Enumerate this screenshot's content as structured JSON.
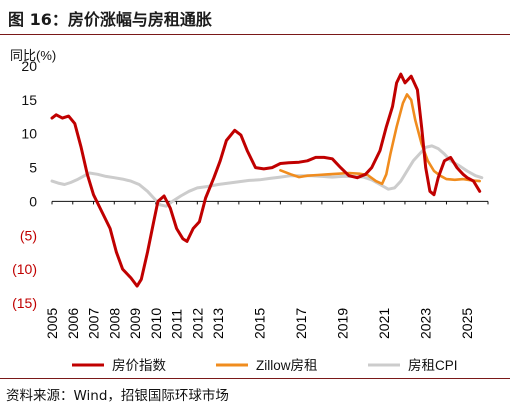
{
  "header": {
    "title": "图 16：房价涨幅与房租通胀"
  },
  "footer": {
    "source": "资料来源：Wind，招银国际环球市场"
  },
  "chart_data": {
    "type": "line",
    "ylabel": "同比(%)",
    "ylim": [
      -15,
      20
    ],
    "y_ticks": [
      "20",
      "15",
      "10",
      "5",
      "0",
      "(5)",
      "(10)",
      "(15)"
    ],
    "negative_label_color": "#c00000",
    "x_range": [
      2005,
      2026
    ],
    "x_ticks": [
      "2005",
      "2006",
      "2007",
      "2008",
      "2009",
      "2010",
      "2011",
      "2012",
      "2013",
      "2015",
      "2017",
      "2019",
      "2021",
      "2023",
      "2025"
    ],
    "legend_position": "bottom",
    "series": [
      {
        "name": "房价指数",
        "color": "#c00000",
        "points": [
          [
            2005.0,
            12.3
          ],
          [
            2005.2,
            12.8
          ],
          [
            2005.5,
            12.3
          ],
          [
            2005.8,
            12.6
          ],
          [
            2006.1,
            11.5
          ],
          [
            2006.4,
            8.0
          ],
          [
            2006.7,
            4.0
          ],
          [
            2007.0,
            1.0
          ],
          [
            2007.4,
            -1.5
          ],
          [
            2007.8,
            -4.0
          ],
          [
            2008.1,
            -7.5
          ],
          [
            2008.4,
            -10.0
          ],
          [
            2008.8,
            -11.3
          ],
          [
            2009.1,
            -12.5
          ],
          [
            2009.3,
            -11.5
          ],
          [
            2009.6,
            -7.5
          ],
          [
            2009.9,
            -3.0
          ],
          [
            2010.1,
            0.0
          ],
          [
            2010.4,
            0.8
          ],
          [
            2010.7,
            -1.0
          ],
          [
            2011.0,
            -4.0
          ],
          [
            2011.3,
            -5.5
          ],
          [
            2011.5,
            -5.9
          ],
          [
            2011.8,
            -4.0
          ],
          [
            2012.1,
            -3.0
          ],
          [
            2012.4,
            0.5
          ],
          [
            2012.8,
            3.5
          ],
          [
            2013.1,
            6.0
          ],
          [
            2013.4,
            9.0
          ],
          [
            2013.8,
            10.5
          ],
          [
            2014.1,
            9.8
          ],
          [
            2014.4,
            7.5
          ],
          [
            2014.8,
            5.0
          ],
          [
            2015.2,
            4.8
          ],
          [
            2015.6,
            5.0
          ],
          [
            2016.0,
            5.6
          ],
          [
            2016.4,
            5.7
          ],
          [
            2016.9,
            5.8
          ],
          [
            2017.3,
            6.0
          ],
          [
            2017.7,
            6.5
          ],
          [
            2018.1,
            6.5
          ],
          [
            2018.5,
            6.3
          ],
          [
            2018.9,
            5.0
          ],
          [
            2019.3,
            3.8
          ],
          [
            2019.7,
            3.5
          ],
          [
            2020.1,
            4.0
          ],
          [
            2020.4,
            5.0
          ],
          [
            2020.8,
            7.5
          ],
          [
            2021.1,
            11.0
          ],
          [
            2021.4,
            14.0
          ],
          [
            2021.6,
            17.5
          ],
          [
            2021.8,
            18.8
          ],
          [
            2022.0,
            17.5
          ],
          [
            2022.3,
            18.5
          ],
          [
            2022.6,
            16.5
          ],
          [
            2022.8,
            11.0
          ],
          [
            2023.0,
            5.0
          ],
          [
            2023.2,
            1.5
          ],
          [
            2023.4,
            1.0
          ],
          [
            2023.6,
            3.5
          ],
          [
            2023.9,
            6.0
          ],
          [
            2024.2,
            6.5
          ],
          [
            2024.5,
            5.0
          ],
          [
            2024.8,
            4.0
          ],
          [
            2025.0,
            3.5
          ],
          [
            2025.3,
            3.0
          ],
          [
            2025.6,
            1.5
          ]
        ]
      },
      {
        "name": "Zillow房租",
        "color": "#f08c1e",
        "points": [
          [
            2016.0,
            4.6
          ],
          [
            2016.5,
            4.0
          ],
          [
            2016.9,
            3.6
          ],
          [
            2017.3,
            3.8
          ],
          [
            2017.8,
            3.9
          ],
          [
            2018.3,
            4.0
          ],
          [
            2018.8,
            4.1
          ],
          [
            2019.3,
            4.2
          ],
          [
            2019.8,
            4.1
          ],
          [
            2020.2,
            3.9
          ],
          [
            2020.6,
            3.0
          ],
          [
            2020.9,
            2.6
          ],
          [
            2021.1,
            4.0
          ],
          [
            2021.3,
            7.0
          ],
          [
            2021.6,
            11.0
          ],
          [
            2021.9,
            14.5
          ],
          [
            2022.1,
            15.8
          ],
          [
            2022.3,
            15.0
          ],
          [
            2022.5,
            12.0
          ],
          [
            2022.8,
            8.5
          ],
          [
            2023.1,
            6.0
          ],
          [
            2023.4,
            4.5
          ],
          [
            2023.7,
            3.8
          ],
          [
            2024.0,
            3.3
          ],
          [
            2024.4,
            3.2
          ],
          [
            2024.8,
            3.3
          ],
          [
            2025.2,
            3.1
          ],
          [
            2025.6,
            3.0
          ]
        ]
      },
      {
        "name": "房租CPI",
        "color": "#cccccc",
        "points": [
          [
            2005.0,
            3.0
          ],
          [
            2005.3,
            2.7
          ],
          [
            2005.6,
            2.5
          ],
          [
            2005.9,
            2.8
          ],
          [
            2006.2,
            3.2
          ],
          [
            2006.5,
            3.7
          ],
          [
            2006.8,
            4.2
          ],
          [
            2007.2,
            4.0
          ],
          [
            2007.6,
            3.7
          ],
          [
            2008.0,
            3.5
          ],
          [
            2008.4,
            3.3
          ],
          [
            2008.8,
            3.0
          ],
          [
            2009.2,
            2.5
          ],
          [
            2009.6,
            1.5
          ],
          [
            2009.9,
            0.5
          ],
          [
            2010.2,
            -0.5
          ],
          [
            2010.5,
            -0.7
          ],
          [
            2010.8,
            0.0
          ],
          [
            2011.2,
            0.8
          ],
          [
            2011.6,
            1.5
          ],
          [
            2012.0,
            2.0
          ],
          [
            2012.5,
            2.2
          ],
          [
            2013.0,
            2.5
          ],
          [
            2013.5,
            2.7
          ],
          [
            2014.0,
            2.9
          ],
          [
            2014.5,
            3.1
          ],
          [
            2015.0,
            3.2
          ],
          [
            2015.5,
            3.4
          ],
          [
            2016.0,
            3.6
          ],
          [
            2016.5,
            3.8
          ],
          [
            2017.0,
            3.8
          ],
          [
            2017.5,
            3.8
          ],
          [
            2018.0,
            3.7
          ],
          [
            2018.5,
            3.6
          ],
          [
            2019.0,
            3.7
          ],
          [
            2019.5,
            3.7
          ],
          [
            2020.0,
            3.6
          ],
          [
            2020.4,
            3.2
          ],
          [
            2020.8,
            2.5
          ],
          [
            2021.2,
            1.8
          ],
          [
            2021.5,
            2.0
          ],
          [
            2021.8,
            3.0
          ],
          [
            2022.1,
            4.5
          ],
          [
            2022.4,
            6.0
          ],
          [
            2022.7,
            7.0
          ],
          [
            2023.0,
            8.0
          ],
          [
            2023.3,
            8.2
          ],
          [
            2023.6,
            7.8
          ],
          [
            2023.9,
            7.0
          ],
          [
            2024.2,
            6.0
          ],
          [
            2024.6,
            5.3
          ],
          [
            2025.0,
            4.5
          ],
          [
            2025.4,
            3.8
          ],
          [
            2025.7,
            3.5
          ]
        ]
      }
    ]
  }
}
